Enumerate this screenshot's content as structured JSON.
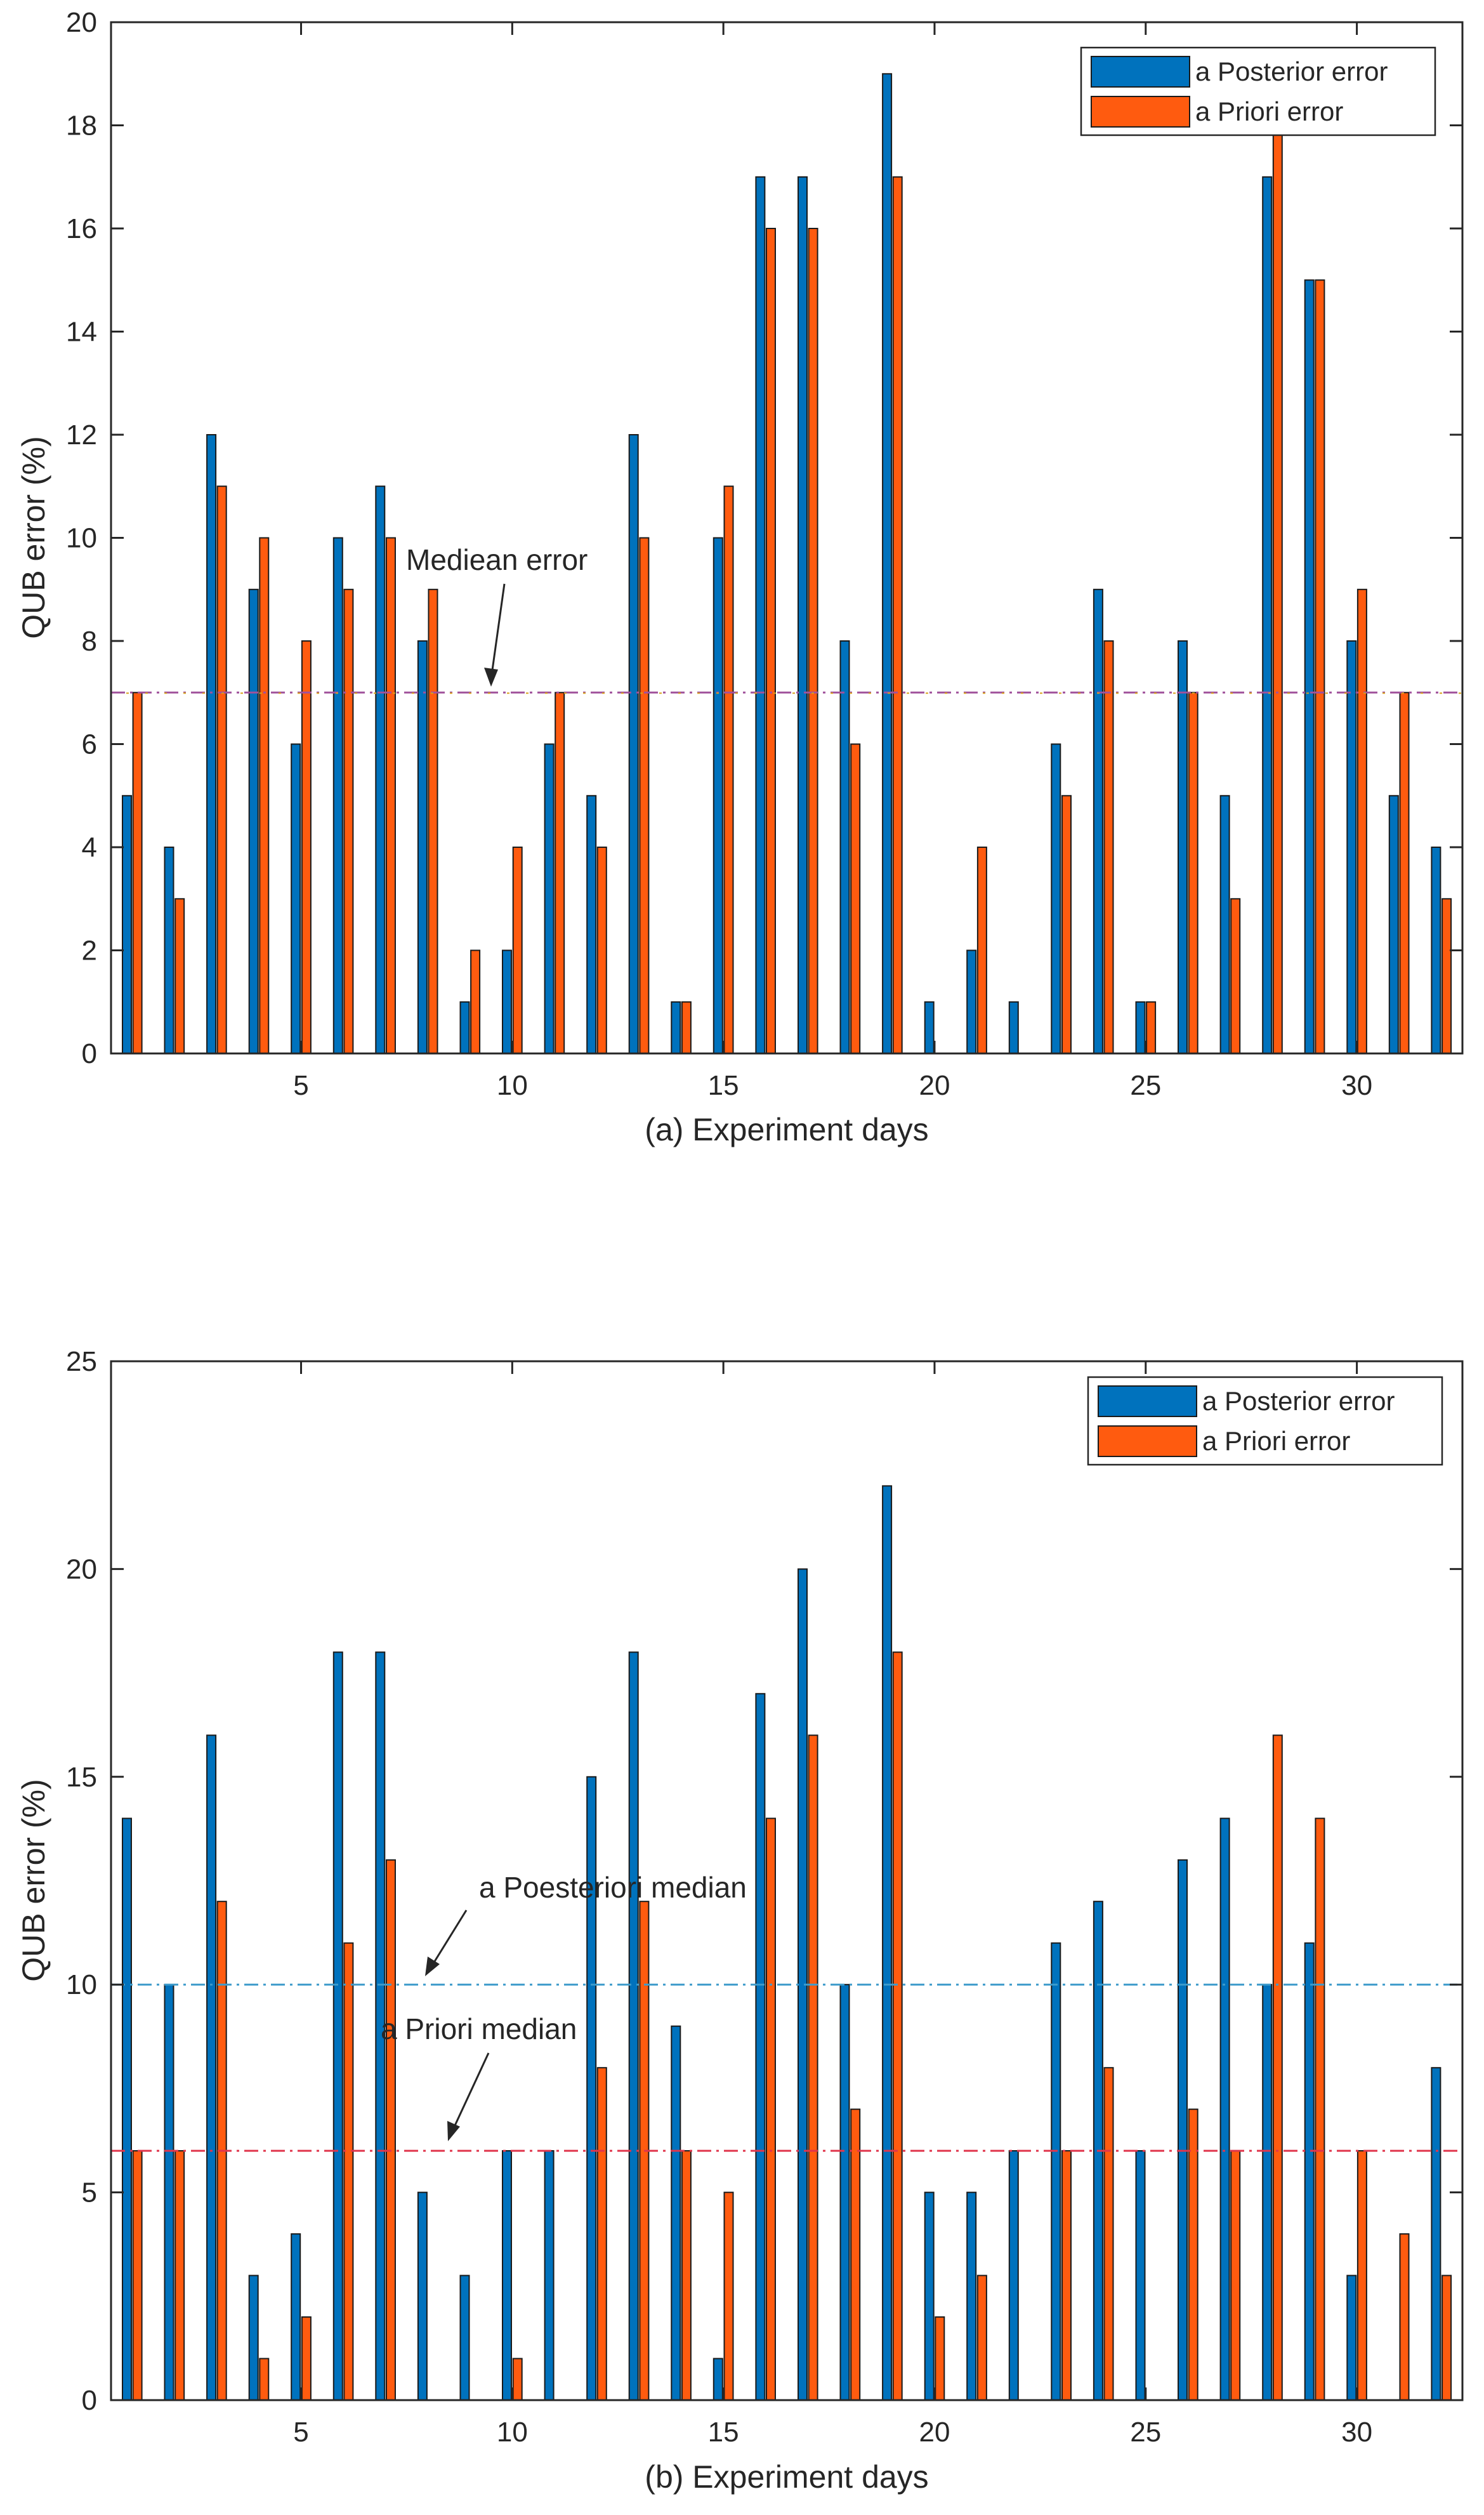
{
  "colors": {
    "posterior": "#0072BD",
    "priori": "#FF5B0F",
    "median_a": "#A0529B",
    "median_b_posterior": "#3E9BCB",
    "median_b_priori": "#E0364C",
    "axis": "#262626",
    "bar_edge": "#1a1a1a"
  },
  "chart_data": [
    {
      "type": "bar",
      "id": "a",
      "days": [
        1,
        2,
        3,
        4,
        5,
        6,
        7,
        8,
        9,
        10,
        11,
        12,
        13,
        14,
        15,
        16,
        17,
        18,
        19,
        20,
        21,
        22,
        23,
        24,
        25,
        26,
        27,
        28,
        29,
        30,
        31,
        32
      ],
      "series": [
        {
          "name": "a Posterior error",
          "color_key": "posterior",
          "values": [
            5,
            4,
            12,
            9,
            6,
            10,
            11,
            8,
            1,
            2,
            6,
            5,
            12,
            1,
            10,
            17,
            17,
            8,
            19,
            1,
            2,
            1,
            6,
            9,
            1,
            8,
            5,
            17,
            15,
            8,
            5,
            4
          ]
        },
        {
          "name": "a Priori error",
          "color_key": "priori",
          "values": [
            7,
            3,
            11,
            10,
            8,
            9,
            10,
            9,
            2,
            4,
            7,
            4,
            10,
            1,
            11,
            16,
            16,
            6,
            17,
            0,
            4,
            0,
            5,
            8,
            1,
            7,
            3,
            18,
            15,
            9,
            7,
            3
          ]
        }
      ],
      "xlabel": "(a) Experiment days",
      "ylabel": "QUB error (%)",
      "ylim": [
        0,
        20
      ],
      "yticks": [
        0,
        2,
        4,
        6,
        8,
        10,
        12,
        14,
        16,
        18,
        20
      ],
      "xticks": [
        5,
        10,
        15,
        20,
        25,
        30
      ],
      "xlim": [
        0.5,
        32.5
      ],
      "legend_position": "top-right",
      "median_lines": [
        {
          "value": 7,
          "color_key": "median_a",
          "label": "Mediean error"
        }
      ]
    },
    {
      "type": "bar",
      "id": "b",
      "days": [
        1,
        2,
        3,
        4,
        5,
        6,
        7,
        8,
        9,
        10,
        11,
        12,
        13,
        14,
        15,
        16,
        17,
        18,
        19,
        20,
        21,
        22,
        23,
        24,
        25,
        26,
        27,
        28,
        29,
        30,
        31,
        32
      ],
      "series": [
        {
          "name": "a Posterior error",
          "color_key": "posterior",
          "values": [
            14,
            10,
            16,
            3,
            4,
            18,
            18,
            5,
            3,
            6,
            6,
            15,
            18,
            9,
            1,
            17,
            20,
            10,
            22,
            5,
            5,
            6,
            11,
            12,
            6,
            13,
            14,
            10,
            11,
            3,
            0,
            8
          ]
        },
        {
          "name": "a Priori error",
          "color_key": "priori",
          "values": [
            6,
            6,
            12,
            1,
            2,
            11,
            13,
            0,
            0,
            1,
            0,
            8,
            12,
            6,
            5,
            14,
            16,
            7,
            18,
            2,
            3,
            0,
            6,
            8,
            0,
            7,
            6,
            16,
            14,
            6,
            4,
            3
          ]
        }
      ],
      "xlabel": "(b) Experiment days",
      "ylabel": "QUB error (%)",
      "ylim": [
        0,
        25
      ],
      "yticks": [
        0,
        5,
        10,
        15,
        20,
        25
      ],
      "xticks": [
        5,
        10,
        15,
        20,
        25,
        30
      ],
      "xlim": [
        0.5,
        32.5
      ],
      "legend_position": "top-right",
      "median_lines": [
        {
          "value": 10,
          "color_key": "median_b_posterior",
          "label": "a Poesteriori median"
        },
        {
          "value": 6,
          "color_key": "median_b_priori",
          "label": "a Priori median"
        }
      ]
    }
  ]
}
